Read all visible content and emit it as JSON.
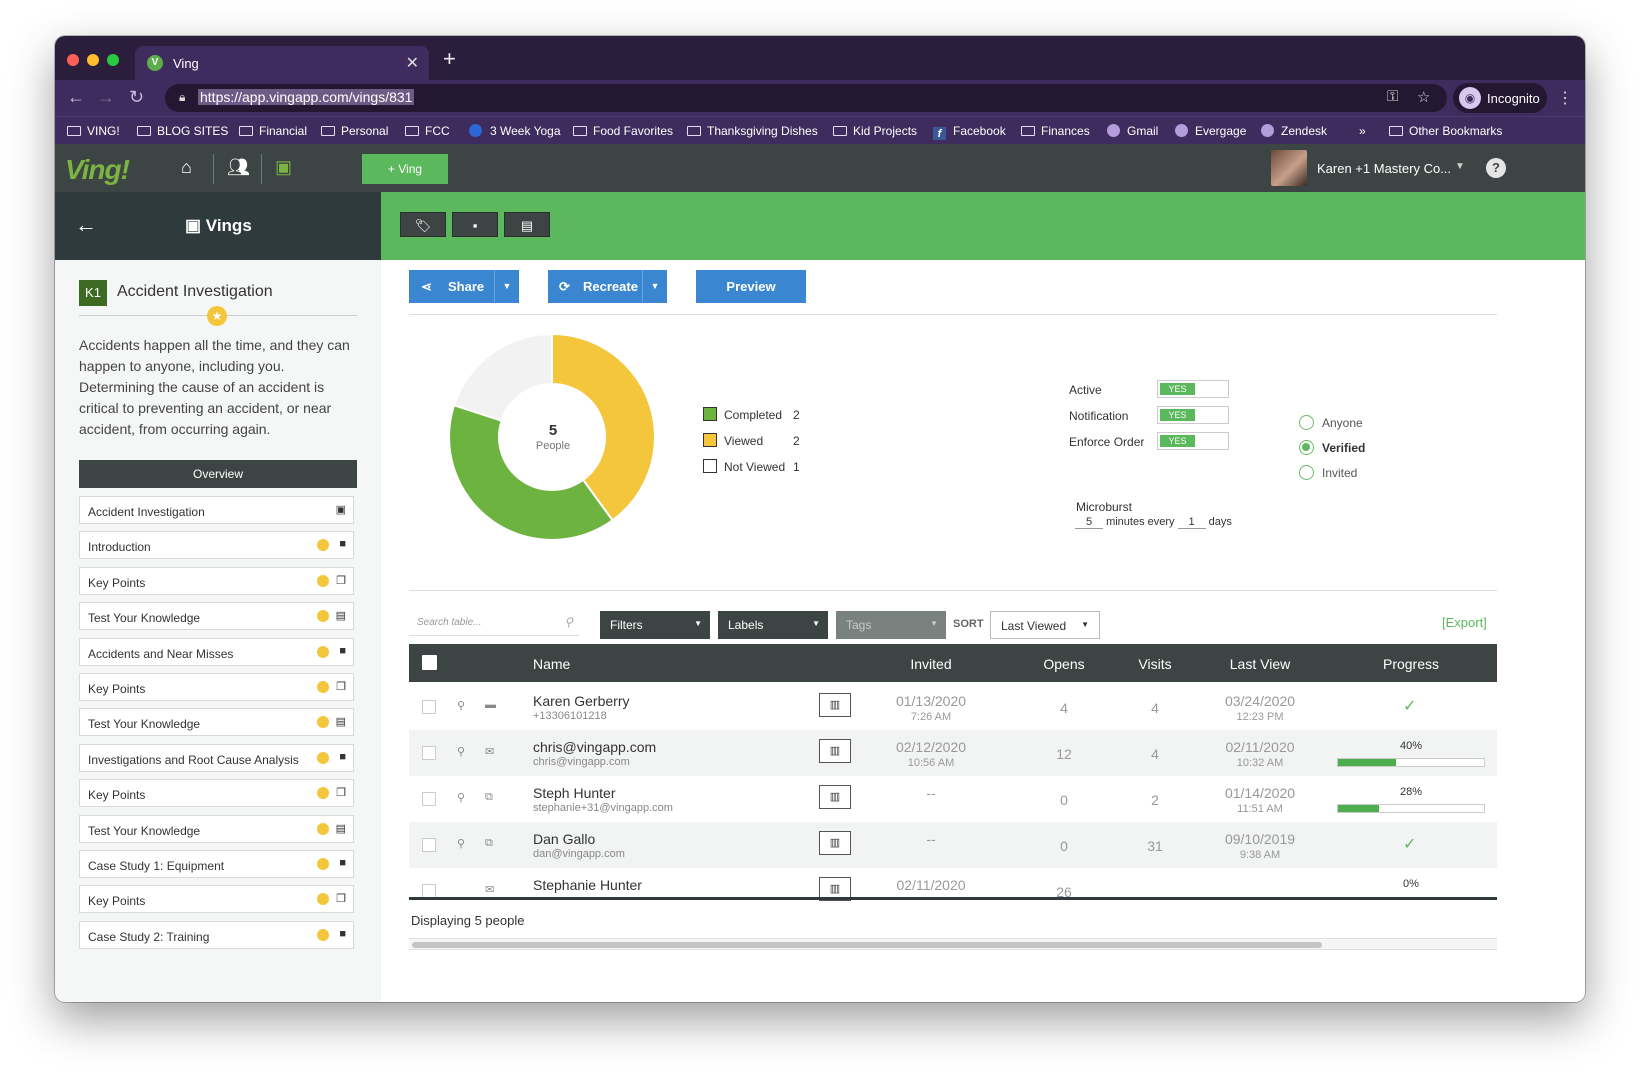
{
  "browser": {
    "tab_title": "Ving",
    "tab_favicon": "V",
    "url": "https://app.vingapp.com/vings/831",
    "incognito_label": "Incognito",
    "bookmarks": [
      "VING!",
      "BLOG SITES",
      "Financial",
      "Personal",
      "FCC",
      "3 Week Yoga",
      "Food Favorites",
      "Thanksgiving Dishes",
      "Kid Projects",
      "Facebook",
      "Finances",
      "Gmail",
      "Evergage",
      "Zendesk"
    ],
    "bookmarks_more": "»",
    "other_bookmarks": "Other Bookmarks"
  },
  "app": {
    "logo": "Ving!",
    "new_ving_label": "+ Ving",
    "user_name": "Karen +1 Mastery Co...",
    "help_label": "?",
    "section_title": "Vings",
    "accent_color": "#5cb85c",
    "header_color": "#3c4543"
  },
  "sidebar": {
    "badge": "K1",
    "title": "Accident Investigation",
    "description": "Accidents happen all the time, and they can happen to anyone, including you. Determining the cause of an accident is critical to preventing an accident, or near accident, from occurring again.",
    "overview_label": "Overview",
    "items": [
      {
        "label": "Accident Investigation",
        "icon": "image-icon",
        "star": false
      },
      {
        "label": "Introduction",
        "icon": "video-icon",
        "star": true
      },
      {
        "label": "Key Points",
        "icon": "copy-icon",
        "star": true
      },
      {
        "label": "Test Your Knowledge",
        "icon": "clipboard-icon",
        "star": true
      },
      {
        "label": "Accidents and Near Misses",
        "icon": "video-icon",
        "star": true
      },
      {
        "label": "Key Points",
        "icon": "copy-icon",
        "star": true
      },
      {
        "label": "Test Your Knowledge",
        "icon": "clipboard-icon",
        "star": true
      },
      {
        "label": "Investigations and Root Cause Analysis",
        "icon": "video-icon",
        "star": true
      },
      {
        "label": "Key Points",
        "icon": "copy-icon",
        "star": true
      },
      {
        "label": "Test Your Knowledge",
        "icon": "clipboard-icon",
        "star": true
      },
      {
        "label": "Case Study 1: Equipment",
        "icon": "video-icon",
        "star": true
      },
      {
        "label": "Key Points",
        "icon": "copy-icon",
        "star": true
      },
      {
        "label": "Case Study 2: Training",
        "icon": "video-icon",
        "star": true
      }
    ]
  },
  "actions": {
    "share": "Share",
    "recreate": "Recreate",
    "preview": "Preview"
  },
  "summary": {
    "total": "5",
    "total_label": "People",
    "legend": [
      {
        "label": "Completed",
        "count": 2,
        "color": "#6db33f"
      },
      {
        "label": "Viewed",
        "count": 2,
        "color": "#f4c63c"
      },
      {
        "label": "Not Viewed",
        "count": 1,
        "color": "#f2f2f2"
      }
    ]
  },
  "settings": {
    "toggles": [
      {
        "label": "Active",
        "value": "YES"
      },
      {
        "label": "Notification",
        "value": "YES"
      },
      {
        "label": "Enforce Order",
        "value": "YES"
      }
    ],
    "microburst_label": "Microburst",
    "microburst_minutes": "5",
    "microburst_mid": "minutes every",
    "microburst_days": "1",
    "microburst_unit": "days",
    "audience": [
      {
        "label": "Anyone",
        "selected": false
      },
      {
        "label": "Verified",
        "selected": true
      },
      {
        "label": "Invited",
        "selected": false
      }
    ]
  },
  "table_controls": {
    "search_placeholder": "Search table...",
    "filters": "Filters",
    "labels": "Labels",
    "tags": "Tags",
    "sort_label": "SORT",
    "sort_value": "Last Viewed",
    "export": "[Export]"
  },
  "table": {
    "columns": [
      "Name",
      "Invited",
      "Opens",
      "Visits",
      "Last View",
      "Progress"
    ],
    "rows": [
      {
        "name": "Karen Gerberry",
        "sub": "+13306101218",
        "contact_icon": "chat-icon",
        "invited_date": "01/13/2020",
        "invited_time": "7:26 AM",
        "opens": "4",
        "visits": "4",
        "last_date": "03/24/2020",
        "last_time": "12:23 PM",
        "progress": 1,
        "progress_label": ""
      },
      {
        "name": "chris@vingapp.com",
        "sub": "chris@vingapp.com",
        "contact_icon": "mail-icon",
        "invited_date": "02/12/2020",
        "invited_time": "10:56 AM",
        "opens": "12",
        "visits": "4",
        "last_date": "02/11/2020",
        "last_time": "10:32 AM",
        "progress": 0.4,
        "progress_label": "40%"
      },
      {
        "name": "Steph Hunter",
        "sub": "stephanie+31@vingapp.com",
        "contact_icon": "external-link-icon",
        "invited_date": "--",
        "invited_time": "",
        "opens": "0",
        "visits": "2",
        "last_date": "01/14/2020",
        "last_time": "11:51 AM",
        "progress": 0.28,
        "progress_label": "28%"
      },
      {
        "name": "Dan Gallo",
        "sub": "dan@vingapp.com",
        "contact_icon": "external-link-icon",
        "invited_date": "--",
        "invited_time": "",
        "opens": "0",
        "visits": "31",
        "last_date": "09/10/2019",
        "last_time": "9:38 AM",
        "progress": 1,
        "progress_label": ""
      },
      {
        "name": "Stephanie Hunter",
        "sub": "",
        "contact_icon": "mail-icon",
        "invited_date": "02/11/2020",
        "invited_time": "",
        "opens": "26",
        "visits": "",
        "last_date": "",
        "last_time": "",
        "progress": 0,
        "progress_label": "0%"
      }
    ],
    "footer": "Displaying 5 people"
  }
}
